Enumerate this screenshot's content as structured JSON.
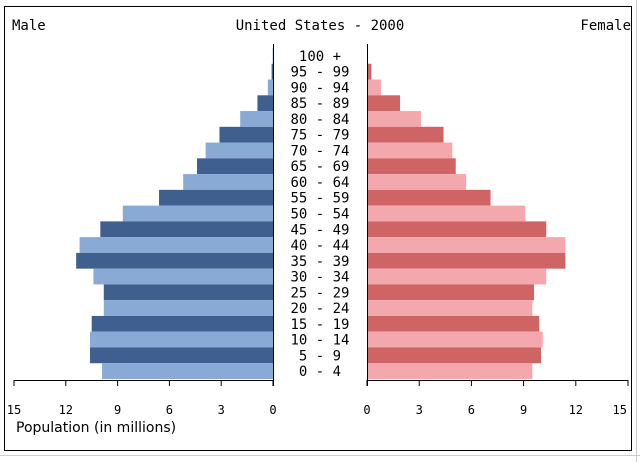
{
  "header": {
    "left_label": "Male",
    "title": "United States - 2000",
    "right_label": "Female"
  },
  "xlabel": "Population (in millions)",
  "colors": {
    "male_dark": "#3f5f8f",
    "male_light": "#8aaad6",
    "female_dark": "#cf6464",
    "female_light": "#f3a8ae"
  },
  "chart_data": {
    "type": "bar",
    "orientation": "horizontal",
    "title": "United States - 2000",
    "xlabel": "Population (in millions)",
    "xlim": [
      0,
      15
    ],
    "ticks": [
      "15",
      "12",
      "9",
      "6",
      "3",
      "0"
    ],
    "ticks_right": [
      "0",
      "3",
      "6",
      "9",
      "12",
      "15"
    ],
    "categories": [
      "100 +",
      "95 - 99",
      "90 - 94",
      "85 - 89",
      "80 - 84",
      "75 - 79",
      "70 - 74",
      "65 - 69",
      "60 - 64",
      "55 - 59",
      "50 - 54",
      "45 - 49",
      "40 - 44",
      "35 - 39",
      "30 - 34",
      "25 - 29",
      "20 - 24",
      "15 - 19",
      "10 - 14",
      "5 - 9",
      "0 - 4"
    ],
    "series": [
      {
        "name": "Male",
        "values": [
          0.02,
          0.08,
          0.3,
          0.9,
          1.9,
          3.1,
          3.9,
          4.4,
          5.2,
          6.6,
          8.7,
          10.0,
          11.2,
          11.4,
          10.4,
          9.8,
          9.8,
          10.5,
          10.6,
          10.6,
          9.9
        ]
      },
      {
        "name": "Female",
        "values": [
          0.05,
          0.25,
          0.8,
          1.9,
          3.1,
          4.4,
          4.9,
          5.1,
          5.7,
          7.1,
          9.1,
          10.3,
          11.4,
          11.4,
          10.3,
          9.6,
          9.5,
          9.9,
          10.1,
          10.0,
          9.5
        ]
      }
    ]
  }
}
